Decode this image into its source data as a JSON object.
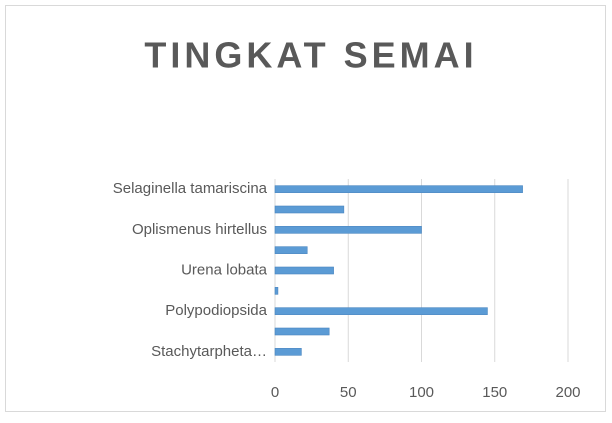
{
  "chart_data": {
    "type": "bar",
    "orientation": "horizontal",
    "title": "TINGKAT SEMAI",
    "categories": [
      "Selaginella tamariscina",
      null,
      "Oplismenus hirtellus",
      null,
      "Urena lobata",
      null,
      "Polypodiopsida",
      null,
      "Stachytarpheta…"
    ],
    "values": [
      169,
      47,
      100,
      22,
      40,
      2,
      145,
      37,
      18
    ],
    "color": "#5b9bd5",
    "xlim": [
      0,
      200
    ],
    "xticks": [
      0,
      50,
      100,
      150,
      200
    ],
    "grid": true
  }
}
